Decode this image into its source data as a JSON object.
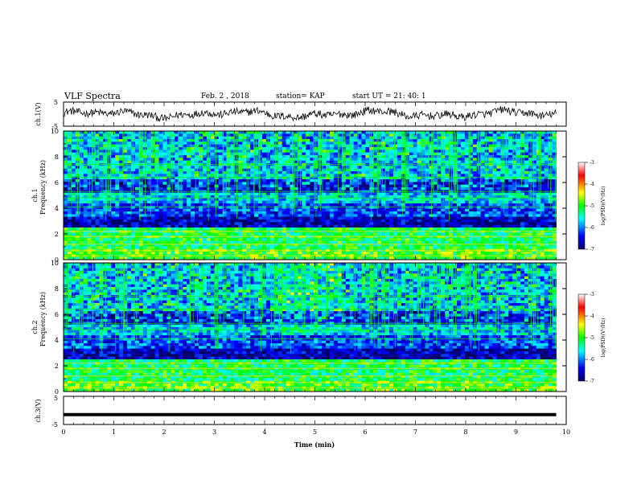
{
  "header": {
    "title": "VLF Spectra",
    "date": "Feb. 2 , 2018",
    "station": "station= KAP",
    "start": "start  UT =   21: 40: 1"
  },
  "chart_data": [
    {
      "type": "line",
      "panel": "ch1-waveform",
      "ylabel": "ch.1(V)",
      "ylim": [
        -5,
        5
      ],
      "yticks": [
        "5",
        "-5"
      ],
      "xlim": [
        0,
        10
      ],
      "color": "#000000",
      "note_shape": "noisy signal between about -3 and +4 V over 0-9.8 min"
    },
    {
      "type": "heatmap",
      "panel": "ch1-spectrogram",
      "ylabel_top": "ch.1",
      "ylabel": "Frequency  (kHz)",
      "ylim": [
        0,
        10
      ],
      "yticks": [
        "0",
        "2",
        "4",
        "6",
        "8",
        "10"
      ],
      "xlim": [
        0,
        10
      ],
      "colorbar": {
        "label": "log(PSD)(V²/Hz)",
        "range": [
          -7,
          -3
        ],
        "ticks": [
          "-3",
          "-4",
          "-5",
          "-6",
          "-7"
        ],
        "colors": [
          "#000060",
          "#0000ff",
          "#00ffff",
          "#00ff00",
          "#ffff00",
          "#ff0000",
          "#ffffff"
        ]
      }
    },
    {
      "type": "heatmap",
      "panel": "ch2-spectrogram",
      "ylabel_top": "ch.2",
      "ylabel": "Frequency  (kHz)",
      "ylim": [
        0,
        10
      ],
      "yticks": [
        "0",
        "2",
        "4",
        "6",
        "8",
        "10"
      ],
      "xlim": [
        0,
        10
      ],
      "colorbar": {
        "label": "log(PSD)(V²/Hz)",
        "range": [
          -7,
          -3
        ],
        "ticks": [
          "-3",
          "-4",
          "-5",
          "-6",
          "-7"
        ],
        "colors": [
          "#000060",
          "#0000ff",
          "#00ffff",
          "#00ff00",
          "#ffff00",
          "#ff0000",
          "#ffffff"
        ]
      }
    },
    {
      "type": "line",
      "panel": "ch3-waveform",
      "ylabel": "ch.3(V)",
      "ylim": [
        -5,
        5
      ],
      "yticks": [
        "5",
        "-5"
      ],
      "xlim": [
        0,
        10
      ],
      "constant_value": -1.5,
      "x_end": 9.8,
      "color": "#000000"
    }
  ],
  "xaxis": {
    "label": "Time  (min)",
    "ticks": [
      "0",
      "1",
      "2",
      "3",
      "4",
      "5",
      "6",
      "7",
      "8",
      "9",
      "10"
    ]
  }
}
